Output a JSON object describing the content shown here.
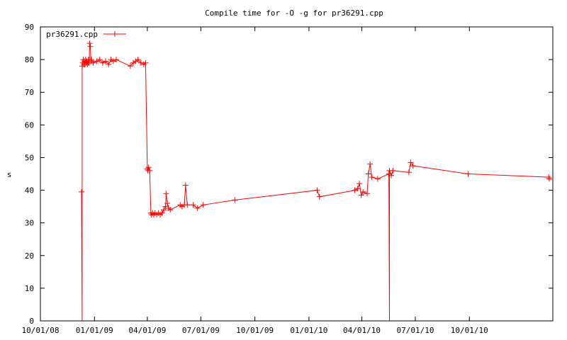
{
  "chart_data": {
    "type": "line",
    "title": "Compile time for -O -g for pr36291.cpp",
    "ylabel": "s",
    "xlabel": "",
    "ylim": [
      0,
      90
    ],
    "yticks": [
      0,
      10,
      20,
      30,
      40,
      50,
      60,
      70,
      80,
      90
    ],
    "xlim": [
      "2008-10-01",
      "2011-02-20"
    ],
    "xticks": [
      {
        "date": "2008-10-01",
        "label": "10/01/08"
      },
      {
        "date": "2009-01-01",
        "label": "01/01/09"
      },
      {
        "date": "2009-04-01",
        "label": "04/01/09"
      },
      {
        "date": "2009-07-01",
        "label": "07/01/09"
      },
      {
        "date": "2009-10-01",
        "label": "10/01/09"
      },
      {
        "date": "2010-01-01",
        "label": "01/01/10"
      },
      {
        "date": "2010-04-01",
        "label": "04/01/10"
      },
      {
        "date": "2010-07-01",
        "label": "07/01/10"
      },
      {
        "date": "2010-10-01",
        "label": "10/01/10"
      }
    ],
    "grid": false,
    "legend_position": "top-left",
    "colors": {
      "series": "#ff0000",
      "axis": "#000000"
    },
    "series": [
      {
        "name": "pr36291.cpp",
        "points": [
          [
            "2008-12-10",
            39.5
          ],
          [
            "2008-12-11",
            0
          ],
          [
            "2008-12-11",
            78
          ],
          [
            "2008-12-12",
            79
          ],
          [
            "2008-12-13",
            80
          ],
          [
            "2008-12-14",
            78.5
          ],
          [
            "2008-12-15",
            79.5
          ],
          [
            "2008-12-16",
            78.5
          ],
          [
            "2008-12-17",
            80
          ],
          [
            "2008-12-18",
            79
          ],
          [
            "2008-12-19",
            79.5
          ],
          [
            "2008-12-20",
            78.5
          ],
          [
            "2008-12-21",
            79
          ],
          [
            "2008-12-22",
            80
          ],
          [
            "2008-12-23",
            79
          ],
          [
            "2008-12-24",
            85
          ],
          [
            "2008-12-25",
            84
          ],
          [
            "2008-12-26",
            79.5
          ],
          [
            "2008-12-27",
            80
          ],
          [
            "2008-12-30",
            79
          ],
          [
            "2009-01-05",
            79.5
          ],
          [
            "2009-01-10",
            80
          ],
          [
            "2009-01-15",
            79
          ],
          [
            "2009-01-20",
            79.5
          ],
          [
            "2009-01-25",
            78.5
          ],
          [
            "2009-01-29",
            80
          ],
          [
            "2009-02-02",
            79.5
          ],
          [
            "2009-02-07",
            80
          ],
          [
            "2009-03-03",
            78
          ],
          [
            "2009-03-08",
            79
          ],
          [
            "2009-03-12",
            79.5
          ],
          [
            "2009-03-16",
            80
          ],
          [
            "2009-03-21",
            79
          ],
          [
            "2009-03-26",
            78.5
          ],
          [
            "2009-03-29",
            79
          ],
          [
            "2009-04-01",
            46.5
          ],
          [
            "2009-04-02",
            46
          ],
          [
            "2009-04-03",
            47
          ],
          [
            "2009-04-05",
            46
          ],
          [
            "2009-04-07",
            33
          ],
          [
            "2009-04-08",
            32.5
          ],
          [
            "2009-04-10",
            33
          ],
          [
            "2009-04-12",
            32.5
          ],
          [
            "2009-04-14",
            33
          ],
          [
            "2009-04-17",
            32.5
          ],
          [
            "2009-04-20",
            33
          ],
          [
            "2009-04-23",
            32.5
          ],
          [
            "2009-04-26",
            33
          ],
          [
            "2009-04-29",
            34
          ],
          [
            "2009-05-02",
            35
          ],
          [
            "2009-05-03",
            39
          ],
          [
            "2009-05-05",
            36
          ],
          [
            "2009-05-07",
            34.5
          ],
          [
            "2009-05-10",
            34
          ],
          [
            "2009-05-27",
            35.5
          ],
          [
            "2009-05-30",
            35
          ],
          [
            "2009-06-03",
            35.5
          ],
          [
            "2009-06-05",
            41.5
          ],
          [
            "2009-06-08",
            35.5
          ],
          [
            "2009-06-18",
            35.5
          ],
          [
            "2009-06-25",
            34.5
          ],
          [
            "2009-07-05",
            35.5
          ],
          [
            "2009-08-28",
            37
          ],
          [
            "2010-01-15",
            40
          ],
          [
            "2010-01-19",
            38
          ],
          [
            "2010-03-20",
            40
          ],
          [
            "2010-03-25",
            40.5
          ],
          [
            "2010-03-28",
            42
          ],
          [
            "2010-03-31",
            38.5
          ],
          [
            "2010-04-03",
            39.5
          ],
          [
            "2010-04-10",
            39
          ],
          [
            "2010-04-12",
            45
          ],
          [
            "2010-04-15",
            48
          ],
          [
            "2010-04-18",
            44
          ],
          [
            "2010-04-28",
            43.5
          ],
          [
            "2010-05-17",
            45
          ],
          [
            "2010-05-18",
            0
          ],
          [
            "2010-05-18",
            46
          ],
          [
            "2010-05-21",
            44.5
          ],
          [
            "2010-05-24",
            46
          ],
          [
            "2010-06-20",
            45.5
          ],
          [
            "2010-06-23",
            48.5
          ],
          [
            "2010-06-27",
            47.5
          ],
          [
            "2010-09-29",
            45
          ],
          [
            "2011-02-13",
            44
          ],
          [
            "2011-02-14",
            43.5
          ]
        ]
      }
    ]
  }
}
